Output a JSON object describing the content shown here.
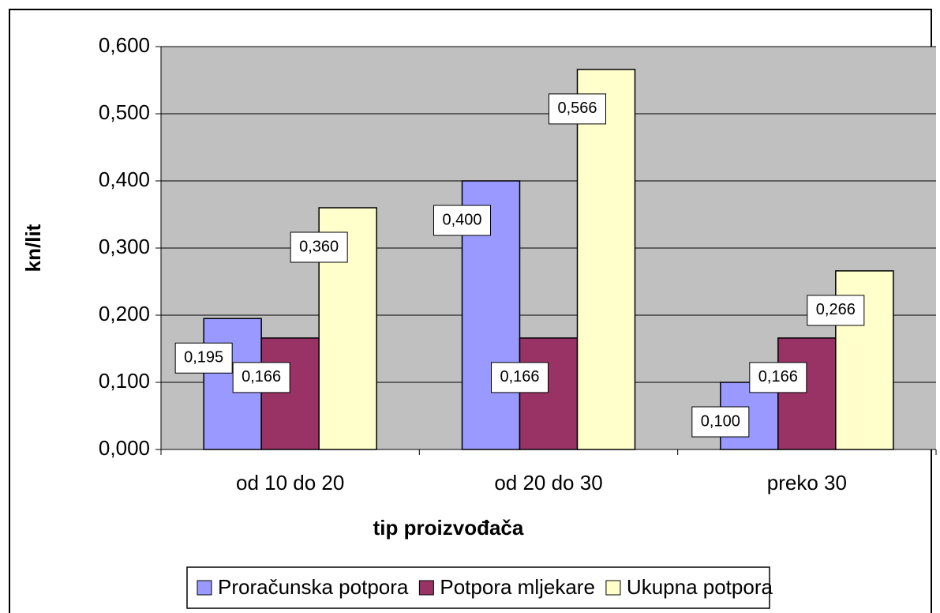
{
  "chart_data": {
    "type": "bar",
    "x_label": "tip proizvođača",
    "y_label": "kn/lit",
    "categories": [
      "od 10 do 20",
      "od 20 do 30",
      "preko 30"
    ],
    "series": [
      {
        "name": "Proračunska potpora",
        "color": "#9999ff",
        "values": [
          0.195,
          0.4,
          0.1
        ],
        "value_labels": [
          "0,195",
          "0,400",
          "0,100"
        ]
      },
      {
        "name": "Potpora mljekare",
        "color": "#993366",
        "values": [
          0.166,
          0.166,
          0.166
        ],
        "value_labels": [
          "0,166",
          "0,166",
          "0,166"
        ]
      },
      {
        "name": "Ukupna potpora",
        "color": "#ffffcc",
        "values": [
          0.36,
          0.566,
          0.266
        ],
        "value_labels": [
          "0,360",
          "0,566",
          "0,266"
        ]
      }
    ],
    "ylim": [
      0,
      0.6
    ],
    "yticks": [
      {
        "value": 0,
        "label": "0,000"
      },
      {
        "value": 0.1,
        "label": "0,100"
      },
      {
        "value": 0.2,
        "label": "0,200"
      },
      {
        "value": 0.3,
        "label": "0,300"
      },
      {
        "value": 0.4,
        "label": "0,400"
      },
      {
        "value": 0.5,
        "label": "0,500"
      },
      {
        "value": 0.6,
        "label": "0,600"
      }
    ],
    "grid": true,
    "legend": "bottom"
  }
}
